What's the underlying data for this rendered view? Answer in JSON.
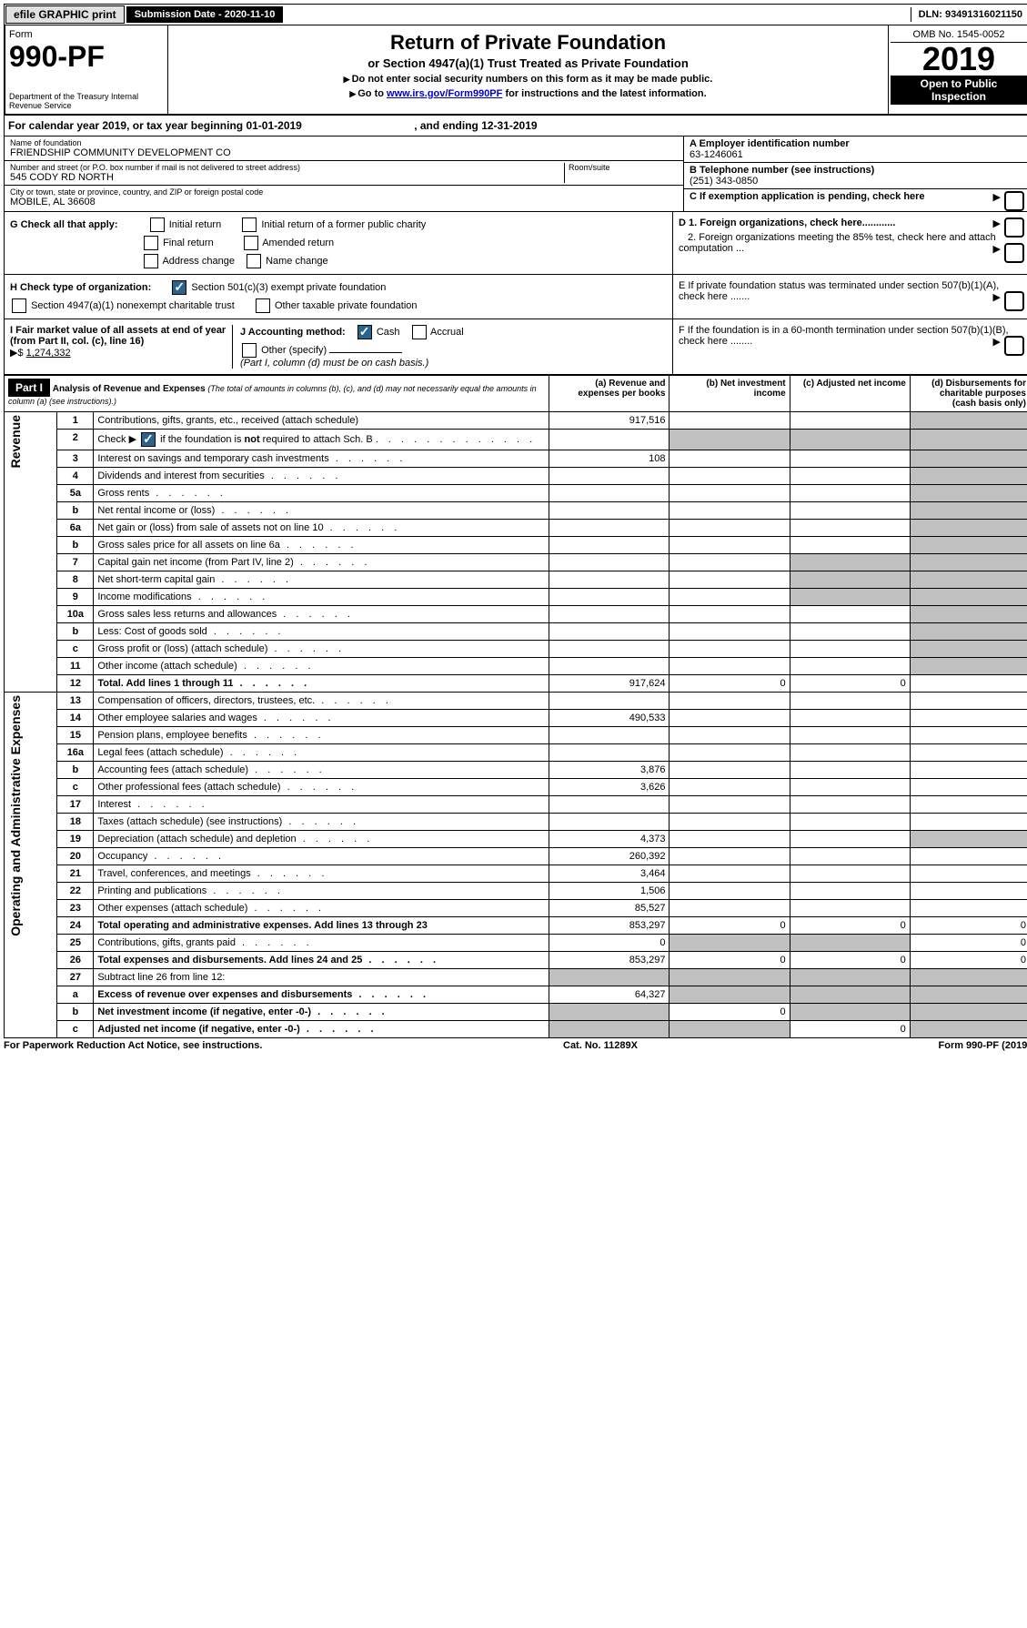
{
  "top": {
    "efile": "efile GRAPHIC print",
    "submission": "Submission Date - 2020-11-10",
    "dln": "DLN: 93491316021150"
  },
  "header": {
    "form": "Form",
    "formNum": "990-PF",
    "dept": "Department of the Treasury Internal Revenue Service",
    "title": "Return of Private Foundation",
    "subtitle": "or Section 4947(a)(1) Trust Treated as Private Foundation",
    "instr1": "Do not enter social security numbers on this form as it may be made public.",
    "instr2prefix": "Go to ",
    "instr2link": "www.irs.gov/Form990PF",
    "instr2suffix": " for instructions and the latest information.",
    "omb": "OMB No. 1545-0052",
    "year": "2019",
    "inspection": "Open to Public Inspection"
  },
  "calYear": {
    "prefix": "For calendar year 2019, or tax year beginning ",
    "begin": "01-01-2019",
    "mid": ", and ending ",
    "end": "12-31-2019"
  },
  "entity": {
    "nameLabel": "Name of foundation",
    "name": "FRIENDSHIP COMMUNITY DEVELOPMENT CO",
    "addrLabel": "Number and street (or P.O. box number if mail is not delivered to street address)",
    "addr": "545 CODY RD NORTH",
    "roomLabel": "Room/suite",
    "cityLabel": "City or town, state or province, country, and ZIP or foreign postal code",
    "city": "MOBILE, AL  36608",
    "einLabel": "A Employer identification number",
    "ein": "63-1246061",
    "phoneLabel": "B Telephone number (see instructions)",
    "phone": "(251) 343-0850",
    "cLabel": "C If exemption application is pending, check here"
  },
  "blockG": {
    "label": "G Check all that apply:",
    "opts": [
      "Initial return",
      "Initial return of a former public charity",
      "Final return",
      "Amended return",
      "Address change",
      "Name change"
    ]
  },
  "blockH": {
    "label": "H Check type of organization:",
    "opt1": "Section 501(c)(3) exempt private foundation",
    "opt2": "Section 4947(a)(1) nonexempt charitable trust",
    "opt3": "Other taxable private foundation"
  },
  "blockI": {
    "label": "I Fair market value of all assets at end of year (from Part II, col. (c), line 16)",
    "arrow": "▶$",
    "value": "1,274,332"
  },
  "blockJ": {
    "label": "J Accounting method:",
    "cash": "Cash",
    "accrual": "Accrual",
    "other": "Other (specify)",
    "note": "(Part I, column (d) must be on cash basis.)"
  },
  "blockD": {
    "d1": "D 1. Foreign organizations, check here............",
    "d2": "2. Foreign organizations meeting the 85% test, check here and attach computation ...",
    "e": "E  If private foundation status was terminated under section 507(b)(1)(A), check here .......",
    "f": "F  If the foundation is in a 60-month termination under section 507(b)(1)(B), check here ........"
  },
  "part1": {
    "label": "Part I",
    "title": "Analysis of Revenue and Expenses",
    "titleNote": "(The total of amounts in columns (b), (c), and (d) may not necessarily equal the amounts in column (a) (see instructions).)",
    "colA": "(a)   Revenue and expenses per books",
    "colB": "(b)  Net investment income",
    "colC": "(c)  Adjusted net income",
    "colD": "(d)  Disbursements for charitable purposes (cash basis only)"
  },
  "sideLabels": {
    "revenue": "Revenue",
    "expenses": "Operating and Administrative Expenses"
  },
  "rows": [
    {
      "n": "1",
      "desc": "Contributions, gifts, grants, etc., received (attach schedule)",
      "a": "917,516"
    },
    {
      "n": "2",
      "desc": "Check ▶ [✓] if the foundation is not required to attach Sch. B",
      "a": ""
    },
    {
      "n": "3",
      "desc": "Interest on savings and temporary cash investments",
      "a": "108"
    },
    {
      "n": "4",
      "desc": "Dividends and interest from securities",
      "a": ""
    },
    {
      "n": "5a",
      "desc": "Gross rents",
      "a": ""
    },
    {
      "n": "b",
      "desc": "Net rental income or (loss)",
      "a": ""
    },
    {
      "n": "6a",
      "desc": "Net gain or (loss) from sale of assets not on line 10",
      "a": ""
    },
    {
      "n": "b",
      "desc": "Gross sales price for all assets on line 6a",
      "a": ""
    },
    {
      "n": "7",
      "desc": "Capital gain net income (from Part IV, line 2)",
      "a": ""
    },
    {
      "n": "8",
      "desc": "Net short-term capital gain",
      "a": ""
    },
    {
      "n": "9",
      "desc": "Income modifications",
      "a": ""
    },
    {
      "n": "10a",
      "desc": "Gross sales less returns and allowances",
      "a": ""
    },
    {
      "n": "b",
      "desc": "Less: Cost of goods sold",
      "a": ""
    },
    {
      "n": "c",
      "desc": "Gross profit or (loss) (attach schedule)",
      "a": ""
    },
    {
      "n": "11",
      "desc": "Other income (attach schedule)",
      "a": ""
    },
    {
      "n": "12",
      "desc": "Total. Add lines 1 through 11",
      "a": "917,624",
      "b": "0",
      "c": "0",
      "bold": true
    },
    {
      "n": "13",
      "desc": "Compensation of officers, directors, trustees, etc.",
      "a": ""
    },
    {
      "n": "14",
      "desc": "Other employee salaries and wages",
      "a": "490,533"
    },
    {
      "n": "15",
      "desc": "Pension plans, employee benefits",
      "a": ""
    },
    {
      "n": "16a",
      "desc": "Legal fees (attach schedule)",
      "a": ""
    },
    {
      "n": "b",
      "desc": "Accounting fees (attach schedule)",
      "a": "3,876"
    },
    {
      "n": "c",
      "desc": "Other professional fees (attach schedule)",
      "a": "3,626"
    },
    {
      "n": "17",
      "desc": "Interest",
      "a": ""
    },
    {
      "n": "18",
      "desc": "Taxes (attach schedule) (see instructions)",
      "a": ""
    },
    {
      "n": "19",
      "desc": "Depreciation (attach schedule) and depletion",
      "a": "4,373"
    },
    {
      "n": "20",
      "desc": "Occupancy",
      "a": "260,392"
    },
    {
      "n": "21",
      "desc": "Travel, conferences, and meetings",
      "a": "3,464"
    },
    {
      "n": "22",
      "desc": "Printing and publications",
      "a": "1,506"
    },
    {
      "n": "23",
      "desc": "Other expenses (attach schedule)",
      "a": "85,527"
    },
    {
      "n": "24",
      "desc": "Total operating and administrative expenses. Add lines 13 through 23",
      "a": "853,297",
      "b": "0",
      "c": "0",
      "d": "0",
      "bold": true
    },
    {
      "n": "25",
      "desc": "Contributions, gifts, grants paid",
      "a": "0",
      "d": "0"
    },
    {
      "n": "26",
      "desc": "Total expenses and disbursements. Add lines 24 and 25",
      "a": "853,297",
      "b": "0",
      "c": "0",
      "d": "0",
      "bold": true
    },
    {
      "n": "27",
      "desc": "Subtract line 26 from line 12:",
      "a": ""
    },
    {
      "n": "a",
      "desc": "Excess of revenue over expenses and disbursements",
      "a": "64,327",
      "bold": true
    },
    {
      "n": "b",
      "desc": "Net investment income (if negative, enter -0-)",
      "b": "0",
      "bold": true
    },
    {
      "n": "c",
      "desc": "Adjusted net income (if negative, enter -0-)",
      "c": "0",
      "bold": true
    }
  ],
  "footer": {
    "left": "For Paperwork Reduction Act Notice, see instructions.",
    "mid": "Cat. No. 11289X",
    "right": "Form 990-PF (2019)"
  },
  "colors": {
    "headerBg": "#000000",
    "checkBg": "#29648e",
    "shaded": "#c0c0c0"
  }
}
